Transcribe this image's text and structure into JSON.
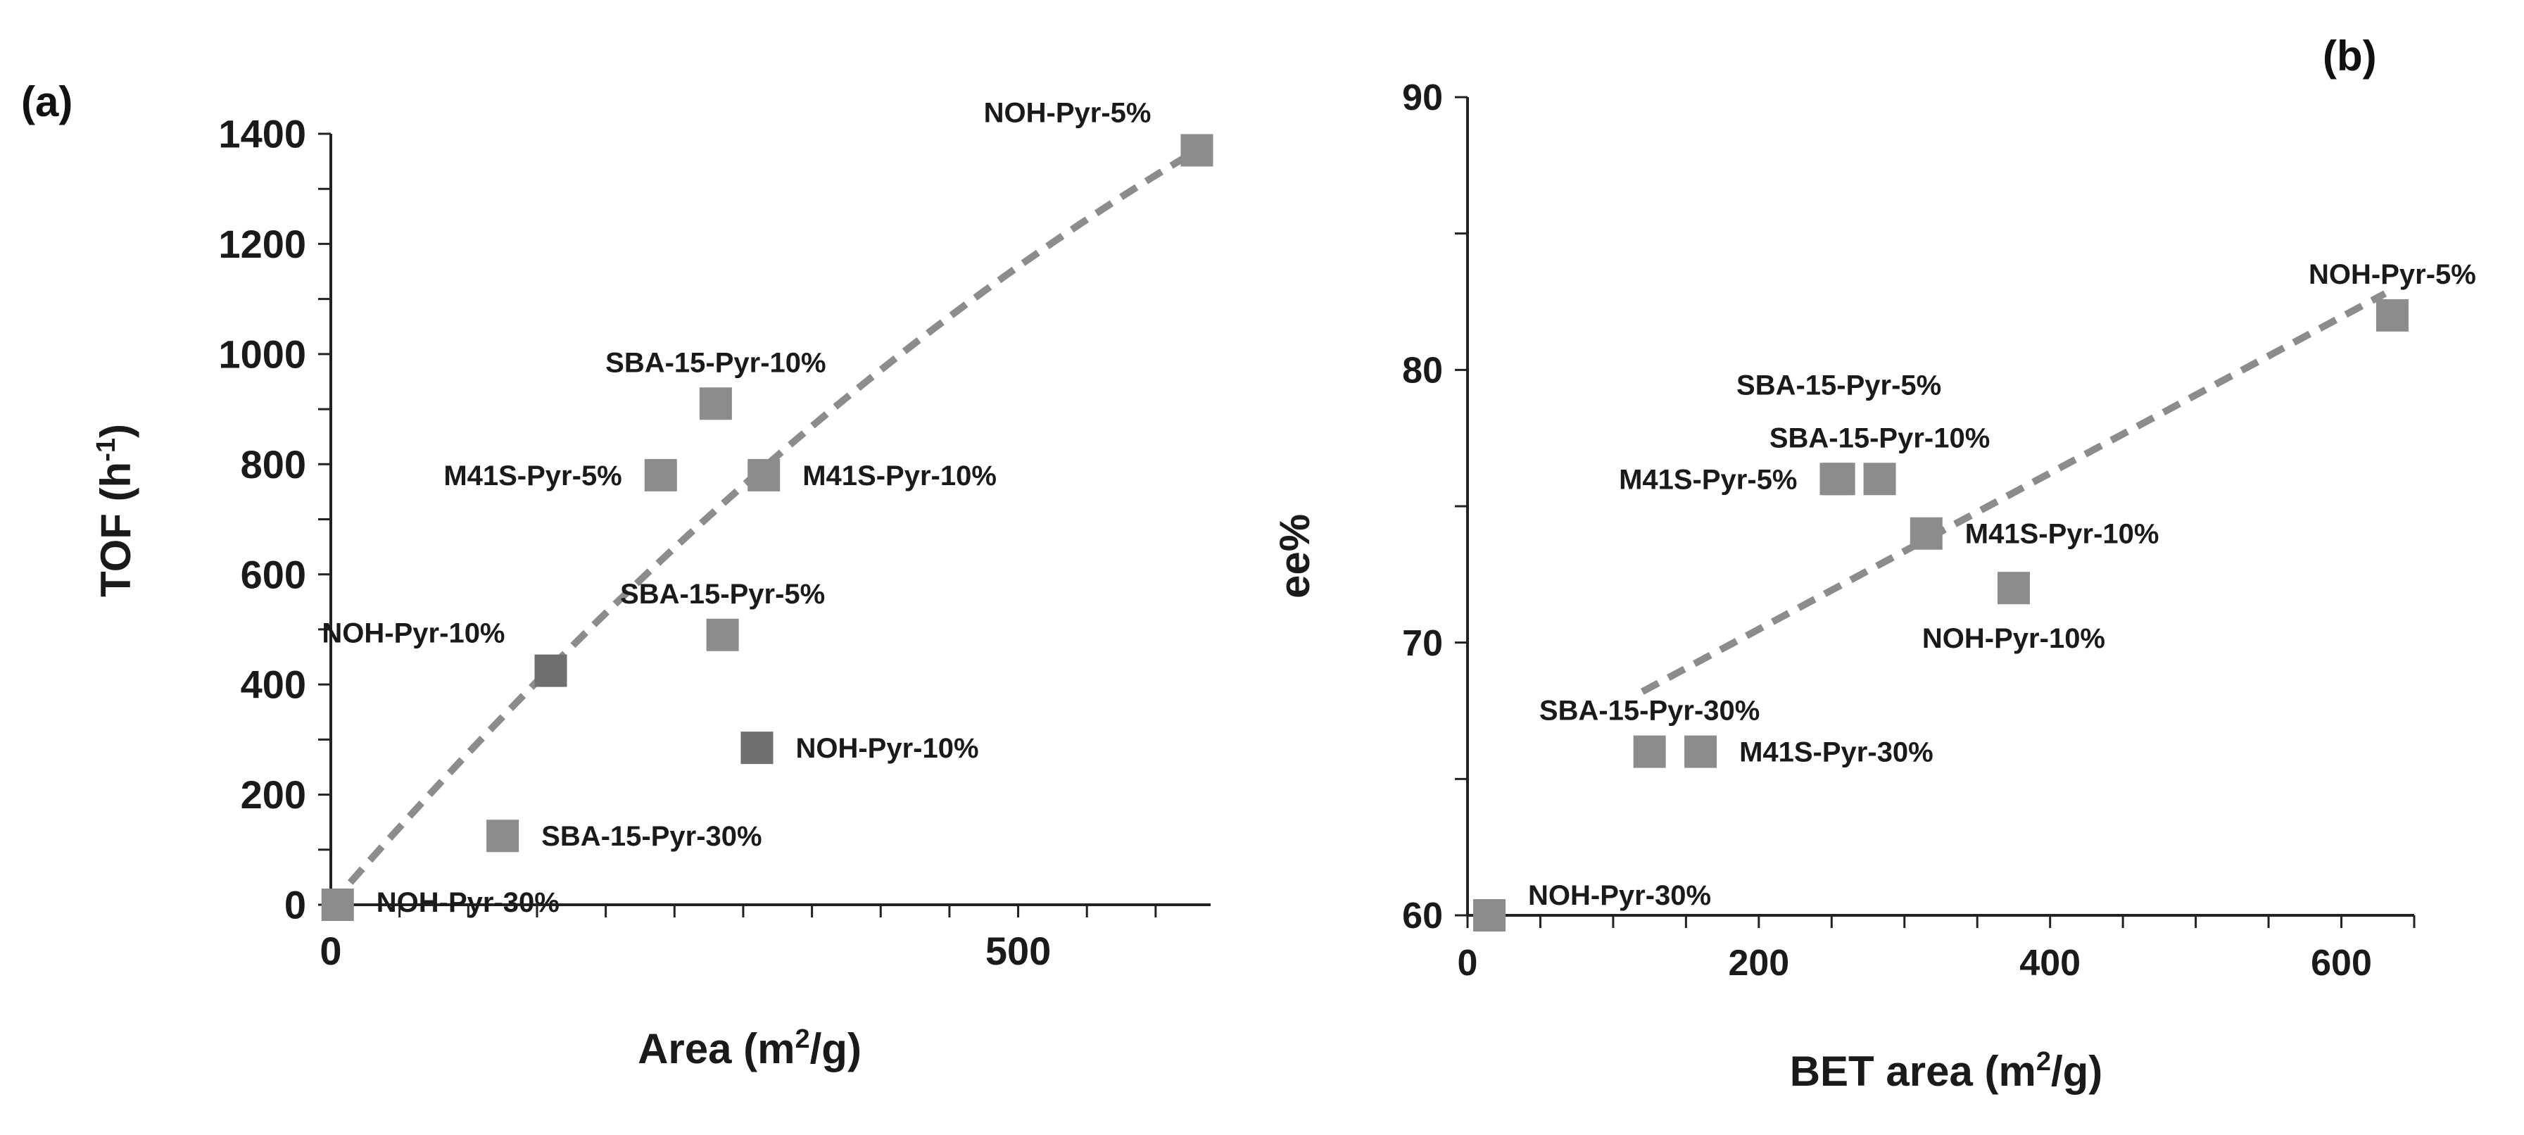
{
  "chart_data": [
    {
      "type": "scatter",
      "panel_label": "(a)",
      "xlabel": "Area (m",
      "xlabel_sup": "2",
      "xlabel_tail": "/g)",
      "ylabel": "TOF (h",
      "ylabel_sup": "-1",
      "ylabel_tail": ")",
      "xlim": [
        0,
        640
      ],
      "ylim": [
        0,
        1400
      ],
      "x_ticks": [
        0,
        500
      ],
      "x_minor_step": 50,
      "y_ticks": [
        0,
        200,
        400,
        600,
        800,
        1000,
        1200,
        1400
      ],
      "y_minor_step": 100,
      "trendline": {
        "type": "dashed-curve",
        "from": [
          0,
          0
        ],
        "to": [
          630,
          1370
        ],
        "curvature": 0.0011
      },
      "points": [
        {
          "name": "NOH-Pyr-5%",
          "x": 630,
          "y": 1370,
          "color": "#8c8c8c",
          "label_pos": "upper-left"
        },
        {
          "name": "SBA-15-Pyr-10%",
          "x": 280,
          "y": 910,
          "color": "#8c8c8c",
          "label_pos": "above"
        },
        {
          "name": "M41S-Pyr-5%",
          "x": 240,
          "y": 780,
          "color": "#8c8c8c",
          "label_pos": "left"
        },
        {
          "name": "M41S-Pyr-10%",
          "x": 315,
          "y": 780,
          "color": "#8c8c8c",
          "label_pos": "right"
        },
        {
          "name": "NOH-Pyr-10%",
          "x": 160,
          "y": 425,
          "color": "#6f6f6f",
          "label_pos": "upper-left"
        },
        {
          "name": "SBA-15-Pyr-5%",
          "x": 285,
          "y": 490,
          "color": "#8c8c8c",
          "label_pos": "above"
        },
        {
          "name": "NOH-Pyr-10%",
          "x": 310,
          "y": 285,
          "color": "#6f6f6f",
          "label_pos": "right"
        },
        {
          "name": "SBA-15-Pyr-30%",
          "x": 125,
          "y": 125,
          "color": "#8c8c8c",
          "label_pos": "right"
        },
        {
          "name": "NOH-Pyr-30%",
          "x": 5,
          "y": 0,
          "color": "#8c8c8c",
          "label_pos": "lower-right"
        }
      ]
    },
    {
      "type": "scatter",
      "panel_label": "(b)",
      "xlabel": "BET area (m",
      "xlabel_sup": "2",
      "xlabel_tail": "/g)",
      "ylabel": "ee%",
      "xlim": [
        0,
        650
      ],
      "ylim": [
        60,
        90
      ],
      "x_ticks": [
        0,
        200,
        400,
        600
      ],
      "x_minor_step": 50,
      "y_ticks": [
        60,
        70,
        80,
        90
      ],
      "y_minor_step": 5,
      "trendline": {
        "type": "dashed-line",
        "from": [
          120,
          68.2
        ],
        "to": [
          630,
          82.8
        ]
      },
      "points": [
        {
          "name": "NOH-Pyr-5%",
          "x": 635,
          "y": 82,
          "color": "#8c8c8c",
          "label_pos": "above"
        },
        {
          "name": "SBA-15-Pyr-5%",
          "x": 255,
          "y": 76,
          "color": "#8c8c8c",
          "label_pos": "above-2"
        },
        {
          "name": "SBA-15-Pyr-10%",
          "x": 283,
          "y": 76,
          "color": "#8c8c8c",
          "label_pos": "above"
        },
        {
          "name": "M41S-Pyr-5%",
          "x": 253,
          "y": 76,
          "color": "#8c8c8c",
          "label_pos": "left"
        },
        {
          "name": "M41S-Pyr-10%",
          "x": 315,
          "y": 74,
          "color": "#8c8c8c",
          "label_pos": "right"
        },
        {
          "name": "NOH-Pyr-10%",
          "x": 375,
          "y": 72,
          "color": "#8c8c8c",
          "label_pos": "below"
        },
        {
          "name": "SBA-15-Pyr-30%",
          "x": 125,
          "y": 66,
          "color": "#8c8c8c",
          "label_pos": "above"
        },
        {
          "name": "M41S-Pyr-30%",
          "x": 160,
          "y": 66,
          "color": "#8c8c8c",
          "label_pos": "right"
        },
        {
          "name": "NOH-Pyr-30%",
          "x": 15,
          "y": 60,
          "color": "#8c8c8c",
          "label_pos": "upper-right"
        }
      ]
    }
  ]
}
